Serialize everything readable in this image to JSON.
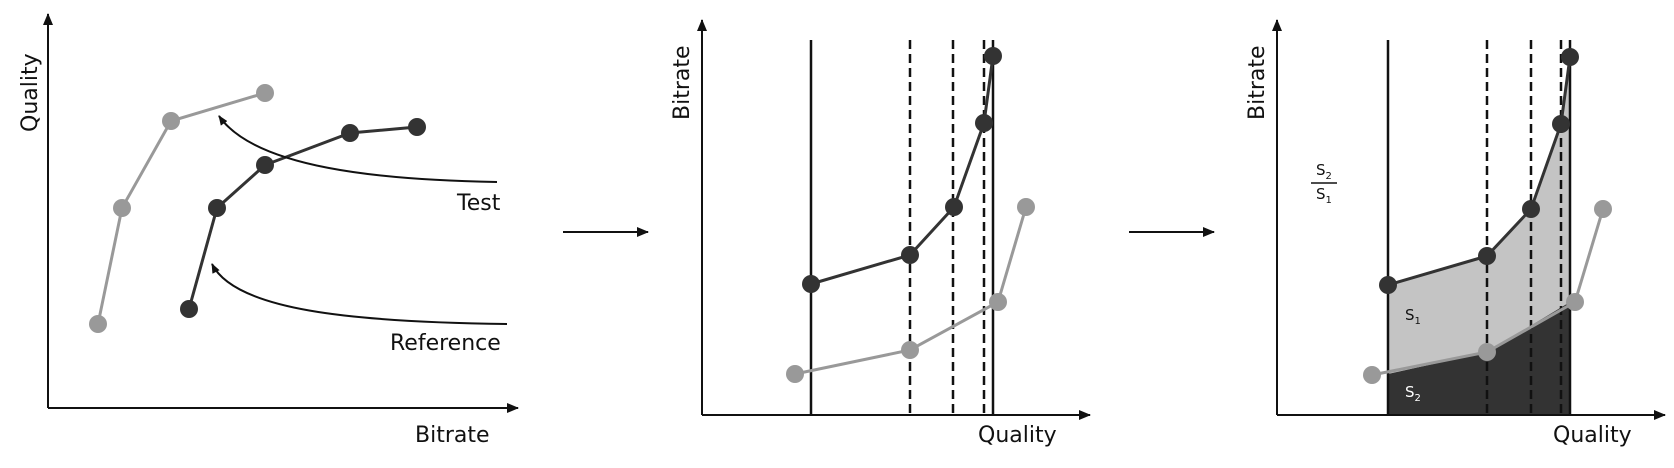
{
  "panel1": {
    "y_axis_label": "Quality",
    "x_axis_label": "Bitrate",
    "test_label": "Test",
    "reference_label": "Reference"
  },
  "panel2": {
    "y_axis_label": "Bitrate",
    "x_axis_label": "Quality"
  },
  "panel3": {
    "y_axis_label": "Bitrate",
    "x_axis_label": "Quality",
    "area_s1": "S",
    "area_s1_sub": "1",
    "area_s2": "S",
    "area_s2_sub": "2",
    "ratio_numerator": "S",
    "ratio_numerator_sub": "2",
    "ratio_denominator": "S",
    "ratio_denominator_sub": "1"
  },
  "colors": {
    "dark_curve": "#333333",
    "light_curve": "#999999",
    "area_upper": "#c4c4c4",
    "area_lower": "#333333",
    "axis": "#111111"
  }
}
